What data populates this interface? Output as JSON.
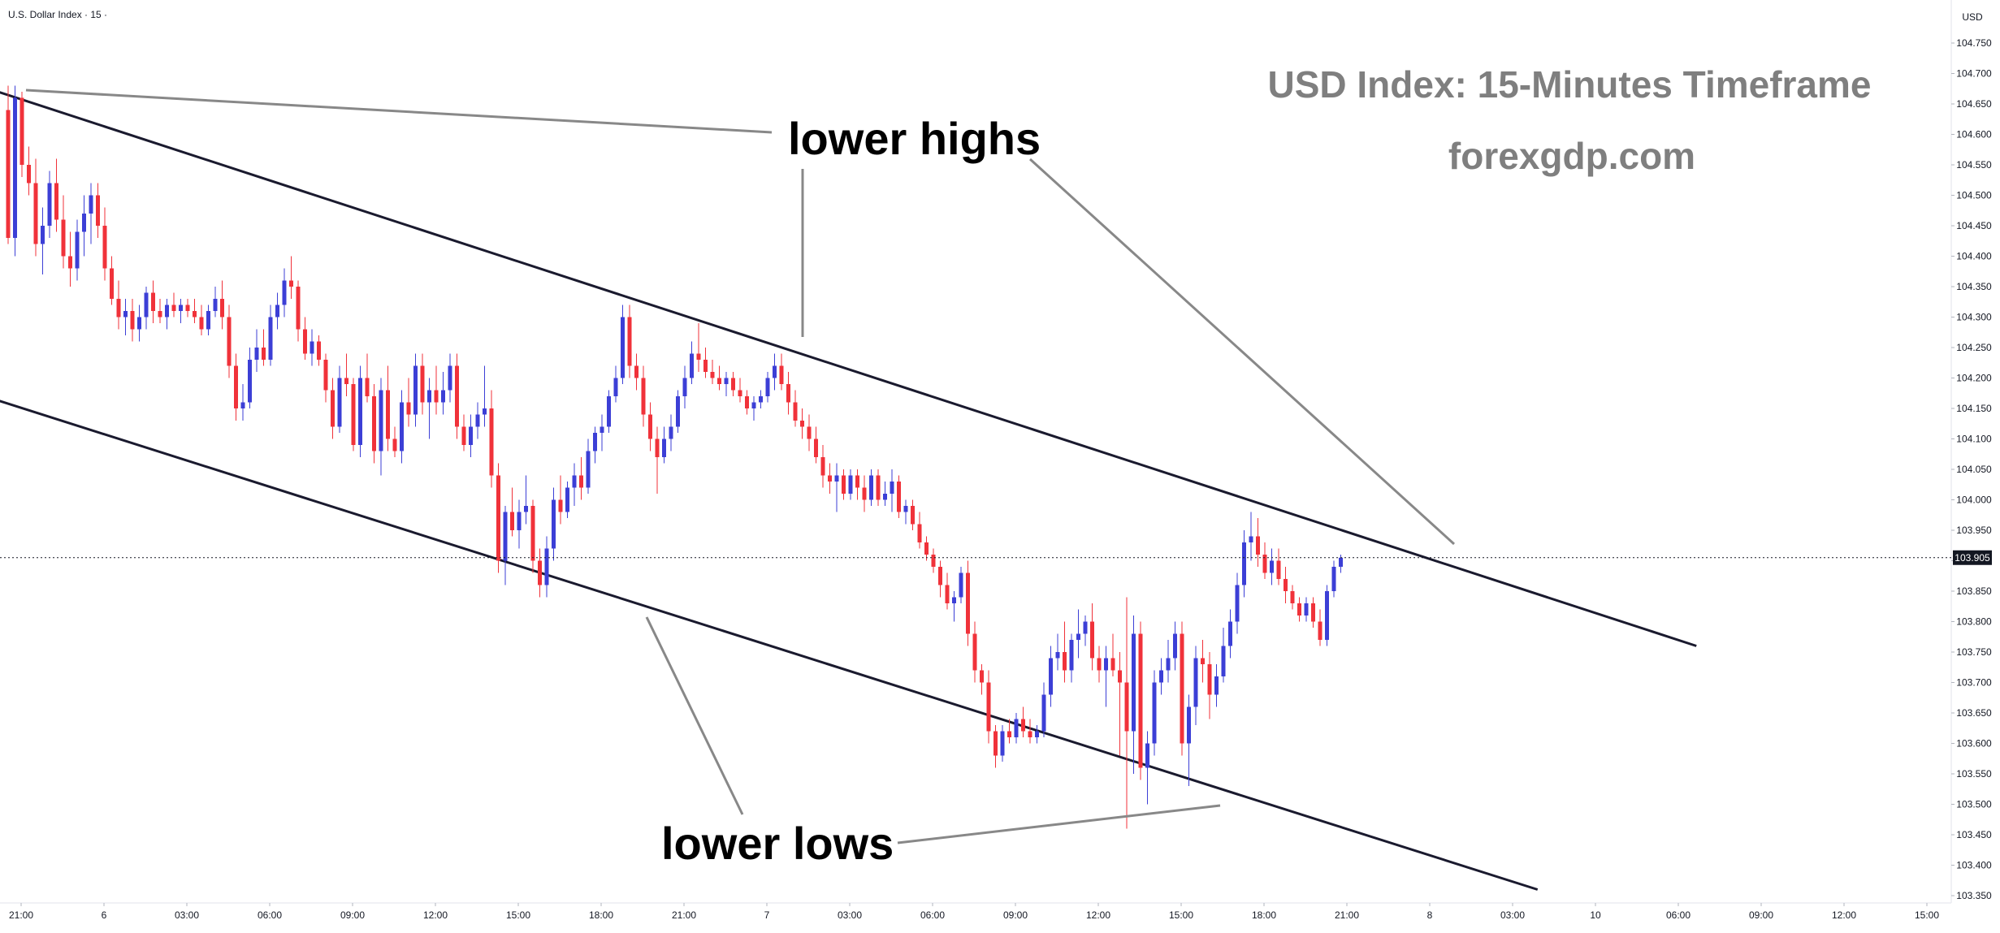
{
  "symbol_label": "U.S. Dollar Index · 15 ·",
  "currency_label": "USD",
  "watermark": {
    "title": "USD Index: 15-Minutes Timeframe",
    "site": "forexgdp.com"
  },
  "annotations": {
    "highs": "lower highs",
    "lows": "lower lows"
  },
  "colors": {
    "up": "#3c3fd6",
    "down": "#f0323a",
    "channel": "#1a1a2e",
    "pointer": "#888888",
    "price_tag": "#131722"
  },
  "chart_data": {
    "type": "candlestick",
    "title": "USD Index: 15-Minutes Timeframe",
    "subtitle": "forexgdp.com",
    "y_axis_ticks": [
      104.75,
      104.7,
      104.65,
      104.6,
      104.55,
      104.5,
      104.45,
      104.4,
      104.35,
      104.3,
      104.25,
      104.2,
      104.15,
      104.1,
      104.05,
      104.0,
      103.95,
      103.9,
      103.85,
      103.8,
      103.75,
      103.7,
      103.65,
      103.6,
      103.55,
      103.5,
      103.45,
      103.4,
      103.35
    ],
    "y_tick_labels": [
      "104.750",
      "104.700",
      "104.650",
      "104.600",
      "104.550",
      "104.500",
      "104.450",
      "104.400",
      "104.350",
      "104.300",
      "104.250",
      "104.200",
      "104.150",
      "104.100",
      "104.050",
      "104.000",
      "103.950",
      "103.900",
      "103.850",
      "103.800",
      "103.750",
      "103.700",
      "103.650",
      "103.600",
      "103.550",
      "103.500",
      "103.450",
      "103.400",
      "103.350"
    ],
    "x_tick_labels": [
      "21:00",
      "6",
      "03:00",
      "06:00",
      "09:00",
      "12:00",
      "15:00",
      "18:00",
      "21:00",
      "7",
      "03:00",
      "06:00",
      "09:00",
      "12:00",
      "15:00",
      "18:00",
      "21:00",
      "8",
      "03:00",
      "10",
      "06:00",
      "09:00",
      "12:00",
      "15:00"
    ],
    "x_tick_bars": [
      0,
      12,
      24,
      36,
      48,
      60,
      72,
      84,
      96,
      108,
      120,
      132,
      144,
      156,
      168,
      180,
      192,
      204,
      216,
      228,
      240,
      252,
      264,
      276
    ],
    "last_price": 103.905,
    "last_price_label": "103.905",
    "grid": false,
    "trendlines": [
      {
        "name": "upper-channel",
        "bar_start": -2,
        "price_start": 104.672,
        "bar_end": 244.5,
        "price_end": 103.76
      },
      {
        "name": "lower-channel",
        "bar_start": -2,
        "price_start": 104.165,
        "bar_end": 221.5,
        "price_end": 103.36
      }
    ],
    "candles": [
      [
        104.64,
        104.68,
        104.42,
        104.43
      ],
      [
        104.43,
        104.68,
        104.4,
        104.66
      ],
      [
        104.66,
        104.67,
        104.53,
        104.55
      ],
      [
        104.55,
        104.58,
        104.5,
        104.52
      ],
      [
        104.52,
        104.56,
        104.4,
        104.42
      ],
      [
        104.42,
        104.48,
        104.37,
        104.45
      ],
      [
        104.45,
        104.54,
        104.43,
        104.52
      ],
      [
        104.52,
        104.56,
        104.44,
        104.46
      ],
      [
        104.46,
        104.5,
        104.38,
        104.4
      ],
      [
        104.4,
        104.44,
        104.35,
        104.38
      ],
      [
        104.38,
        104.46,
        104.36,
        104.44
      ],
      [
        104.44,
        104.5,
        104.4,
        104.47
      ],
      [
        104.47,
        104.52,
        104.42,
        104.5
      ],
      [
        104.5,
        104.52,
        104.43,
        104.45
      ],
      [
        104.45,
        104.48,
        104.36,
        104.38
      ],
      [
        104.38,
        104.4,
        104.32,
        104.33
      ],
      [
        104.33,
        104.36,
        104.28,
        104.3
      ],
      [
        104.3,
        104.33,
        104.27,
        104.31
      ],
      [
        104.31,
        104.33,
        104.26,
        104.28
      ],
      [
        104.28,
        104.32,
        104.26,
        104.3
      ],
      [
        104.3,
        104.35,
        104.28,
        104.34
      ],
      [
        104.34,
        104.36,
        104.29,
        104.31
      ],
      [
        104.31,
        104.33,
        104.29,
        104.3
      ],
      [
        104.3,
        104.33,
        104.28,
        104.32
      ],
      [
        104.32,
        104.34,
        104.3,
        104.31
      ],
      [
        104.31,
        104.33,
        104.29,
        104.32
      ],
      [
        104.32,
        104.33,
        104.3,
        104.31
      ],
      [
        104.31,
        104.33,
        104.29,
        104.3
      ],
      [
        104.3,
        104.32,
        104.27,
        104.28
      ],
      [
        104.28,
        104.32,
        104.27,
        104.31
      ],
      [
        104.31,
        104.35,
        104.3,
        104.33
      ],
      [
        104.33,
        104.36,
        104.28,
        104.3
      ],
      [
        104.3,
        104.32,
        104.2,
        104.22
      ],
      [
        104.22,
        104.24,
        104.13,
        104.15
      ],
      [
        104.15,
        104.19,
        104.13,
        104.16
      ],
      [
        104.16,
        104.25,
        104.15,
        104.23
      ],
      [
        104.23,
        104.28,
        104.21,
        104.25
      ],
      [
        104.25,
        104.28,
        104.22,
        104.23
      ],
      [
        104.23,
        104.32,
        104.22,
        104.3
      ],
      [
        104.3,
        104.34,
        104.28,
        104.32
      ],
      [
        104.32,
        104.38,
        104.3,
        104.36
      ],
      [
        104.36,
        104.4,
        104.33,
        104.35
      ],
      [
        104.35,
        104.36,
        104.26,
        104.28
      ],
      [
        104.28,
        104.3,
        104.23,
        104.24
      ],
      [
        104.24,
        104.28,
        104.22,
        104.26
      ],
      [
        104.26,
        104.27,
        104.22,
        104.23
      ],
      [
        104.23,
        104.24,
        104.16,
        104.18
      ],
      [
        104.18,
        104.2,
        104.1,
        104.12
      ],
      [
        104.12,
        104.22,
        104.11,
        104.2
      ],
      [
        104.2,
        104.24,
        104.17,
        104.19
      ],
      [
        104.19,
        104.2,
        104.08,
        104.09
      ],
      [
        104.09,
        104.22,
        104.07,
        104.2
      ],
      [
        104.2,
        104.24,
        104.16,
        104.17
      ],
      [
        104.17,
        104.19,
        104.06,
        104.08
      ],
      [
        104.08,
        104.2,
        104.04,
        104.18
      ],
      [
        104.18,
        104.22,
        104.08,
        104.1
      ],
      [
        104.1,
        104.12,
        104.07,
        104.08
      ],
      [
        104.08,
        104.18,
        104.06,
        104.16
      ],
      [
        104.16,
        104.2,
        104.12,
        104.14
      ],
      [
        104.14,
        104.24,
        104.12,
        104.22
      ],
      [
        104.22,
        104.24,
        104.14,
        104.16
      ],
      [
        104.16,
        104.2,
        104.1,
        104.18
      ],
      [
        104.18,
        104.22,
        104.14,
        104.16
      ],
      [
        104.16,
        104.21,
        104.14,
        104.18
      ],
      [
        104.18,
        104.24,
        104.16,
        104.22
      ],
      [
        104.22,
        104.24,
        104.1,
        104.12
      ],
      [
        104.12,
        104.14,
        104.08,
        104.09
      ],
      [
        104.09,
        104.14,
        104.07,
        104.12
      ],
      [
        104.12,
        104.16,
        104.1,
        104.14
      ],
      [
        104.14,
        104.22,
        104.12,
        104.15
      ],
      [
        104.15,
        104.18,
        104.02,
        104.04
      ],
      [
        104.04,
        104.06,
        103.88,
        103.9
      ],
      [
        103.9,
        103.99,
        103.86,
        103.98
      ],
      [
        103.98,
        104.02,
        103.94,
        103.95
      ],
      [
        103.95,
        104.0,
        103.92,
        103.98
      ],
      [
        103.98,
        104.04,
        103.96,
        103.99
      ],
      [
        103.99,
        104.0,
        103.88,
        103.9
      ],
      [
        103.9,
        103.92,
        103.84,
        103.86
      ],
      [
        103.86,
        103.94,
        103.84,
        103.92
      ],
      [
        103.92,
        104.02,
        103.9,
        104.0
      ],
      [
        104.0,
        104.04,
        103.96,
        103.98
      ],
      [
        103.98,
        104.03,
        103.97,
        104.02
      ],
      [
        104.02,
        104.06,
        103.99,
        104.04
      ],
      [
        104.04,
        104.07,
        104.0,
        104.02
      ],
      [
        104.02,
        104.1,
        104.01,
        104.08
      ],
      [
        104.08,
        104.12,
        104.06,
        104.11
      ],
      [
        104.11,
        104.14,
        104.08,
        104.12
      ],
      [
        104.12,
        104.18,
        104.11,
        104.17
      ],
      [
        104.17,
        104.22,
        104.16,
        104.2
      ],
      [
        104.2,
        104.32,
        104.19,
        104.3
      ],
      [
        104.3,
        104.32,
        104.2,
        104.22
      ],
      [
        104.22,
        104.24,
        104.18,
        104.2
      ],
      [
        104.2,
        104.22,
        104.12,
        104.14
      ],
      [
        104.14,
        104.16,
        104.08,
        104.1
      ],
      [
        104.1,
        104.12,
        104.01,
        104.07
      ],
      [
        104.07,
        104.12,
        104.06,
        104.1
      ],
      [
        104.1,
        104.14,
        104.08,
        104.12
      ],
      [
        104.12,
        104.18,
        104.11,
        104.17
      ],
      [
        104.17,
        104.22,
        104.15,
        104.2
      ],
      [
        104.2,
        104.26,
        104.19,
        104.24
      ],
      [
        104.24,
        104.29,
        104.21,
        104.23
      ],
      [
        104.23,
        104.25,
        104.2,
        104.21
      ],
      [
        104.21,
        104.23,
        104.19,
        104.2
      ],
      [
        104.2,
        104.22,
        104.18,
        104.19
      ],
      [
        104.19,
        104.21,
        104.17,
        104.2
      ],
      [
        104.2,
        104.21,
        104.17,
        104.18
      ],
      [
        104.18,
        104.2,
        104.16,
        104.17
      ],
      [
        104.17,
        104.18,
        104.14,
        104.15
      ],
      [
        104.15,
        104.17,
        104.13,
        104.16
      ],
      [
        104.16,
        104.18,
        104.15,
        104.17
      ],
      [
        104.17,
        104.21,
        104.16,
        104.2
      ],
      [
        104.2,
        104.24,
        104.18,
        104.22
      ],
      [
        104.22,
        104.24,
        104.18,
        104.19
      ],
      [
        104.19,
        104.21,
        104.14,
        104.16
      ],
      [
        104.16,
        104.18,
        104.12,
        104.13
      ],
      [
        104.13,
        104.15,
        104.1,
        104.12
      ],
      [
        104.12,
        104.14,
        104.08,
        104.1
      ],
      [
        104.1,
        104.12,
        104.06,
        104.07
      ],
      [
        104.07,
        104.09,
        104.02,
        104.04
      ],
      [
        104.04,
        104.06,
        104.01,
        104.03
      ],
      [
        104.03,
        104.06,
        103.98,
        104.04
      ],
      [
        104.04,
        104.05,
        104.0,
        104.01
      ],
      [
        104.01,
        104.05,
        104.0,
        104.04
      ],
      [
        104.04,
        104.05,
        104.0,
        104.02
      ],
      [
        104.02,
        104.04,
        103.98,
        104.0
      ],
      [
        104.0,
        104.05,
        103.99,
        104.04
      ],
      [
        104.04,
        104.05,
        103.99,
        104.0
      ],
      [
        104.0,
        104.03,
        103.99,
        104.01
      ],
      [
        104.01,
        104.05,
        103.98,
        104.03
      ],
      [
        104.03,
        104.04,
        103.97,
        103.98
      ],
      [
        103.98,
        104.0,
        103.96,
        103.99
      ],
      [
        103.99,
        104.0,
        103.95,
        103.96
      ],
      [
        103.96,
        103.98,
        103.92,
        103.93
      ],
      [
        103.93,
        103.94,
        103.9,
        103.91
      ],
      [
        103.91,
        103.92,
        103.88,
        103.89
      ],
      [
        103.89,
        103.9,
        103.84,
        103.86
      ],
      [
        103.86,
        103.88,
        103.82,
        103.83
      ],
      [
        103.83,
        103.85,
        103.8,
        103.84
      ],
      [
        103.84,
        103.89,
        103.83,
        103.88
      ],
      [
        103.88,
        103.9,
        103.76,
        103.78
      ],
      [
        103.78,
        103.8,
        103.7,
        103.72
      ],
      [
        103.72,
        103.73,
        103.68,
        103.7
      ],
      [
        103.7,
        103.72,
        103.6,
        103.62
      ],
      [
        103.62,
        103.63,
        103.56,
        103.58
      ],
      [
        103.58,
        103.63,
        103.57,
        103.62
      ],
      [
        103.62,
        103.64,
        103.6,
        103.61
      ],
      [
        103.61,
        103.65,
        103.6,
        103.64
      ],
      [
        103.64,
        103.66,
        103.61,
        103.62
      ],
      [
        103.62,
        103.64,
        103.6,
        103.61
      ],
      [
        103.61,
        103.63,
        103.6,
        103.62
      ],
      [
        103.62,
        103.7,
        103.61,
        103.68
      ],
      [
        103.68,
        103.76,
        103.66,
        103.74
      ],
      [
        103.74,
        103.78,
        103.72,
        103.75
      ],
      [
        103.75,
        103.8,
        103.7,
        103.72
      ],
      [
        103.72,
        103.78,
        103.7,
        103.77
      ],
      [
        103.77,
        103.82,
        103.74,
        103.78
      ],
      [
        103.78,
        103.81,
        103.76,
        103.8
      ],
      [
        103.8,
        103.83,
        103.72,
        103.74
      ],
      [
        103.74,
        103.76,
        103.7,
        103.72
      ],
      [
        103.72,
        103.76,
        103.66,
        103.74
      ],
      [
        103.74,
        103.78,
        103.71,
        103.72
      ],
      [
        103.72,
        103.75,
        103.58,
        103.7
      ],
      [
        103.7,
        103.84,
        103.46,
        103.62
      ],
      [
        103.62,
        103.81,
        103.55,
        103.78
      ],
      [
        103.78,
        103.8,
        103.54,
        103.56
      ],
      [
        103.56,
        103.62,
        103.5,
        103.6
      ],
      [
        103.6,
        103.72,
        103.58,
        103.7
      ],
      [
        103.7,
        103.74,
        103.68,
        103.72
      ],
      [
        103.72,
        103.77,
        103.7,
        103.74
      ],
      [
        103.74,
        103.8,
        103.72,
        103.78
      ],
      [
        103.78,
        103.8,
        103.58,
        103.6
      ],
      [
        103.6,
        103.68,
        103.53,
        103.66
      ],
      [
        103.66,
        103.76,
        103.63,
        103.74
      ],
      [
        103.74,
        103.77,
        103.7,
        103.73
      ],
      [
        103.73,
        103.75,
        103.64,
        103.68
      ],
      [
        103.68,
        103.73,
        103.66,
        103.71
      ],
      [
        103.71,
        103.79,
        103.7,
        103.76
      ],
      [
        103.76,
        103.82,
        103.74,
        103.8
      ],
      [
        103.8,
        103.88,
        103.78,
        103.86
      ],
      [
        103.86,
        103.95,
        103.84,
        103.93
      ],
      [
        103.93,
        103.98,
        103.9,
        103.94
      ],
      [
        103.94,
        103.97,
        103.89,
        103.91
      ],
      [
        103.91,
        103.93,
        103.87,
        103.88
      ],
      [
        103.88,
        103.92,
        103.86,
        103.9
      ],
      [
        103.9,
        103.92,
        103.86,
        103.87
      ],
      [
        103.87,
        103.89,
        103.83,
        103.85
      ],
      [
        103.85,
        103.86,
        103.82,
        103.83
      ],
      [
        103.83,
        103.84,
        103.8,
        103.81
      ],
      [
        103.81,
        103.84,
        103.8,
        103.83
      ],
      [
        103.83,
        103.84,
        103.79,
        103.8
      ],
      [
        103.8,
        103.82,
        103.76,
        103.77
      ],
      [
        103.77,
        103.86,
        103.76,
        103.85
      ],
      [
        103.85,
        103.9,
        103.84,
        103.89
      ],
      [
        103.89,
        103.91,
        103.88,
        103.905
      ]
    ]
  }
}
